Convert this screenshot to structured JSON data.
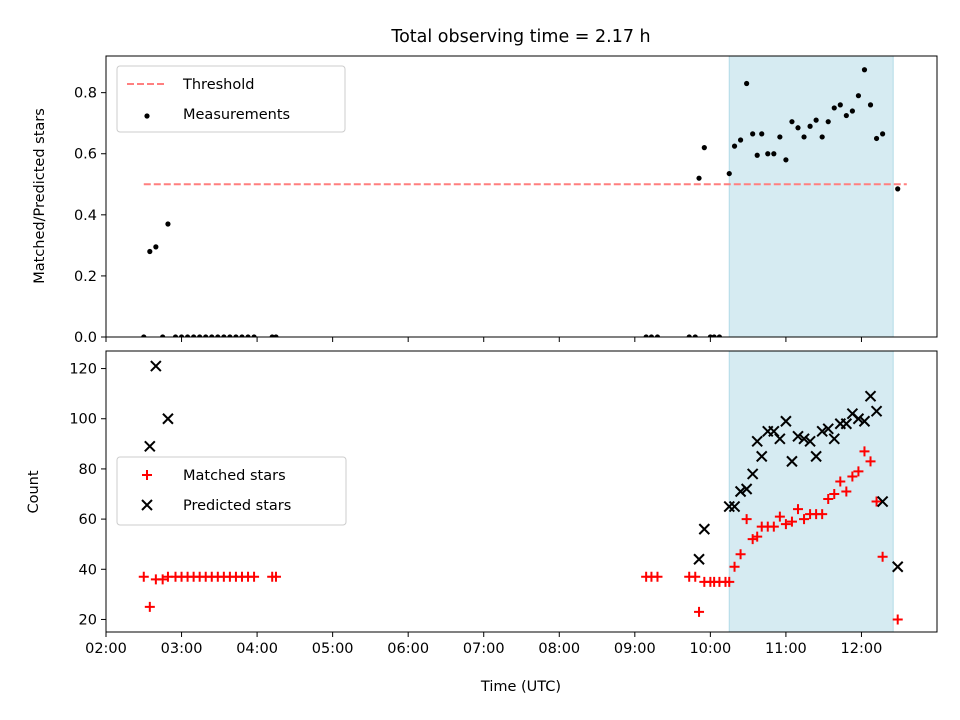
{
  "chart_data": [
    {
      "type": "scatter",
      "title": "Total observing time = 2.17 h",
      "xlabel": "",
      "ylabel": "Matched/Predicted stars",
      "x_unit": "hours UTC",
      "xlim": [
        2.0,
        13.0
      ],
      "ylim": [
        0.0,
        0.92
      ],
      "yticks": [
        0.0,
        0.2,
        0.4,
        0.6,
        0.8
      ],
      "ytick_labels": [
        "0.0",
        "0.2",
        "0.4",
        "0.6",
        "0.8"
      ],
      "highlight_span": [
        10.25,
        12.42
      ],
      "threshold": {
        "name": "Threshold",
        "value": 0.5,
        "x_range": [
          2.5,
          12.6
        ],
        "color": "#ff7f7f",
        "style": "dashed"
      },
      "legend": {
        "location": "upper-left",
        "entries": [
          "Threshold",
          "Measurements"
        ]
      },
      "series": [
        {
          "name": "Measurements",
          "marker": "dot",
          "color": "#000000",
          "points": [
            [
              2.5,
              0.0
            ],
            [
              2.58,
              0.28
            ],
            [
              2.66,
              0.295
            ],
            [
              2.75,
              0.0
            ],
            [
              2.82,
              0.37
            ],
            [
              2.92,
              0.0
            ],
            [
              3.0,
              0.0
            ],
            [
              3.08,
              0.0
            ],
            [
              3.16,
              0.0
            ],
            [
              3.24,
              0.0
            ],
            [
              3.32,
              0.0
            ],
            [
              3.4,
              0.0
            ],
            [
              3.48,
              0.0
            ],
            [
              3.56,
              0.0
            ],
            [
              3.64,
              0.0
            ],
            [
              3.72,
              0.0
            ],
            [
              3.8,
              0.0
            ],
            [
              3.88,
              0.0
            ],
            [
              3.96,
              0.0
            ],
            [
              4.2,
              0.0
            ],
            [
              4.25,
              0.0
            ],
            [
              9.15,
              0.0
            ],
            [
              9.22,
              0.0
            ],
            [
              9.3,
              0.0
            ],
            [
              9.72,
              0.0
            ],
            [
              9.8,
              0.0
            ],
            [
              9.85,
              0.52
            ],
            [
              9.92,
              0.62
            ],
            [
              10.0,
              0.0
            ],
            [
              10.05,
              0.0
            ],
            [
              10.12,
              0.0
            ],
            [
              10.25,
              0.535
            ],
            [
              10.32,
              0.625
            ],
            [
              10.4,
              0.645
            ],
            [
              10.48,
              0.83
            ],
            [
              10.56,
              0.665
            ],
            [
              10.62,
              0.595
            ],
            [
              10.68,
              0.665
            ],
            [
              10.76,
              0.6
            ],
            [
              10.84,
              0.6
            ],
            [
              10.92,
              0.655
            ],
            [
              11.0,
              0.58
            ],
            [
              11.08,
              0.705
            ],
            [
              11.16,
              0.685
            ],
            [
              11.24,
              0.655
            ],
            [
              11.32,
              0.69
            ],
            [
              11.4,
              0.71
            ],
            [
              11.48,
              0.655
            ],
            [
              11.56,
              0.705
            ],
            [
              11.64,
              0.75
            ],
            [
              11.72,
              0.76
            ],
            [
              11.8,
              0.725
            ],
            [
              11.88,
              0.74
            ],
            [
              11.96,
              0.79
            ],
            [
              12.04,
              0.875
            ],
            [
              12.12,
              0.76
            ],
            [
              12.2,
              0.65
            ],
            [
              12.28,
              0.665
            ],
            [
              12.48,
              0.485
            ]
          ]
        }
      ]
    },
    {
      "type": "scatter",
      "title": "",
      "xlabel": "Time (UTC)",
      "ylabel": "Count",
      "x_unit": "hours UTC",
      "xlim": [
        2.0,
        13.0
      ],
      "ylim": [
        15,
        127
      ],
      "xticks": [
        2,
        3,
        4,
        5,
        6,
        7,
        8,
        9,
        10,
        11,
        12
      ],
      "xtick_labels": [
        "02:00",
        "03:00",
        "04:00",
        "05:00",
        "06:00",
        "07:00",
        "08:00",
        "09:00",
        "10:00",
        "11:00",
        "12:00"
      ],
      "yticks": [
        20,
        40,
        60,
        80,
        100,
        120
      ],
      "ytick_labels": [
        "20",
        "40",
        "60",
        "80",
        "100",
        "120"
      ],
      "highlight_span": [
        10.25,
        12.42
      ],
      "legend": {
        "location": "center-left",
        "entries": [
          "Matched stars",
          "Predicted stars"
        ]
      },
      "series": [
        {
          "name": "Matched stars",
          "marker": "plus",
          "color": "#ff0000",
          "points": [
            [
              2.5,
              37
            ],
            [
              2.58,
              25
            ],
            [
              2.66,
              36
            ],
            [
              2.75,
              36
            ],
            [
              2.82,
              37
            ],
            [
              2.92,
              37
            ],
            [
              3.0,
              37
            ],
            [
              3.08,
              37
            ],
            [
              3.16,
              37
            ],
            [
              3.24,
              37
            ],
            [
              3.32,
              37
            ],
            [
              3.4,
              37
            ],
            [
              3.48,
              37
            ],
            [
              3.56,
              37
            ],
            [
              3.64,
              37
            ],
            [
              3.72,
              37
            ],
            [
              3.8,
              37
            ],
            [
              3.88,
              37
            ],
            [
              3.96,
              37
            ],
            [
              4.2,
              37
            ],
            [
              4.25,
              37
            ],
            [
              9.15,
              37
            ],
            [
              9.22,
              37
            ],
            [
              9.3,
              37
            ],
            [
              9.72,
              37
            ],
            [
              9.8,
              37
            ],
            [
              9.85,
              23
            ],
            [
              9.92,
              35
            ],
            [
              10.0,
              35
            ],
            [
              10.05,
              35
            ],
            [
              10.12,
              35
            ],
            [
              10.2,
              35
            ],
            [
              10.25,
              35
            ],
            [
              10.32,
              41
            ],
            [
              10.4,
              46
            ],
            [
              10.48,
              60
            ],
            [
              10.56,
              52
            ],
            [
              10.62,
              53
            ],
            [
              10.68,
              57
            ],
            [
              10.76,
              57
            ],
            [
              10.84,
              57
            ],
            [
              10.92,
              61
            ],
            [
              11.0,
              58
            ],
            [
              11.08,
              59
            ],
            [
              11.16,
              64
            ],
            [
              11.24,
              60
            ],
            [
              11.32,
              62
            ],
            [
              11.4,
              62
            ],
            [
              11.48,
              62
            ],
            [
              11.56,
              68
            ],
            [
              11.64,
              70
            ],
            [
              11.72,
              75
            ],
            [
              11.8,
              71
            ],
            [
              11.88,
              77
            ],
            [
              11.96,
              79
            ],
            [
              12.04,
              87
            ],
            [
              12.12,
              83
            ],
            [
              12.2,
              67
            ],
            [
              12.28,
              45
            ],
            [
              12.48,
              20
            ]
          ]
        },
        {
          "name": "Predicted stars",
          "marker": "x",
          "color": "#000000",
          "points": [
            [
              2.58,
              89
            ],
            [
              2.66,
              121
            ],
            [
              2.82,
              100
            ],
            [
              9.85,
              44
            ],
            [
              9.92,
              56
            ],
            [
              10.25,
              65
            ],
            [
              10.32,
              65
            ],
            [
              10.4,
              71
            ],
            [
              10.48,
              72
            ],
            [
              10.56,
              78
            ],
            [
              10.62,
              91
            ],
            [
              10.68,
              85
            ],
            [
              10.76,
              95
            ],
            [
              10.84,
              95
            ],
            [
              10.92,
              92
            ],
            [
              11.0,
              99
            ],
            [
              11.08,
              83
            ],
            [
              11.16,
              93
            ],
            [
              11.24,
              92
            ],
            [
              11.32,
              91
            ],
            [
              11.4,
              85
            ],
            [
              11.48,
              95
            ],
            [
              11.56,
              96
            ],
            [
              11.64,
              92
            ],
            [
              11.72,
              98
            ],
            [
              11.8,
              98
            ],
            [
              11.88,
              102
            ],
            [
              11.96,
              100
            ],
            [
              12.04,
              99
            ],
            [
              12.12,
              109
            ],
            [
              12.2,
              103
            ],
            [
              12.28,
              67
            ],
            [
              12.48,
              41
            ]
          ]
        }
      ]
    }
  ]
}
